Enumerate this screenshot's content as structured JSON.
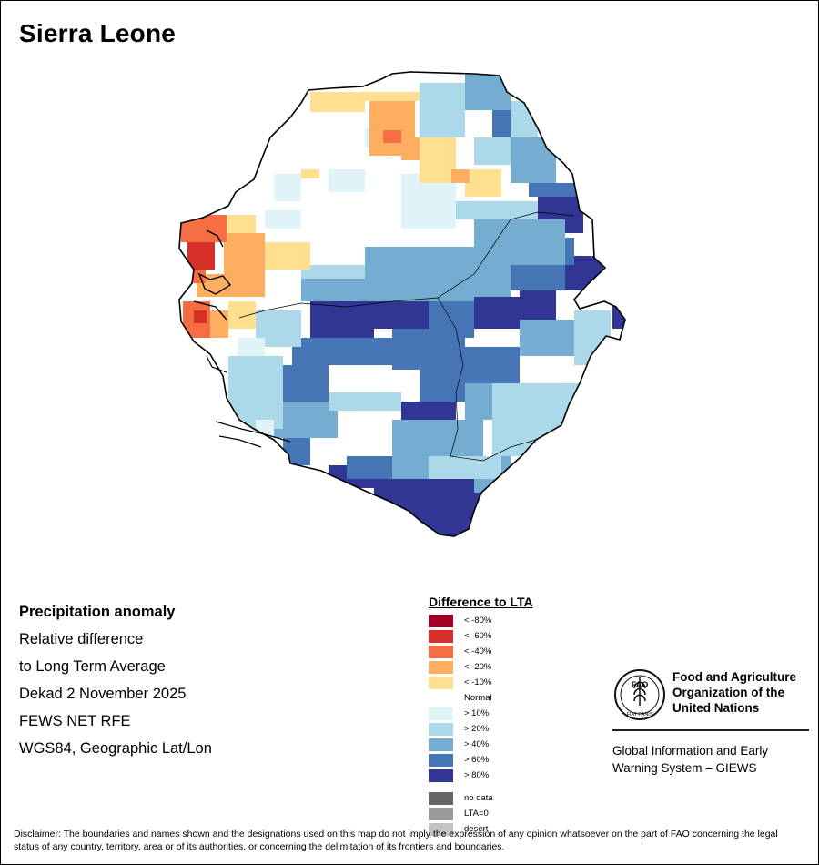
{
  "map": {
    "title": "Sierra Leone"
  },
  "info": {
    "heading": "Precipitation anomaly",
    "lines": [
      "Relative difference",
      "to Long Term Average",
      "Dekad 2 November 2025",
      "FEWS NET RFE",
      "WGS84, Geographic Lat/Lon"
    ]
  },
  "legend": {
    "title": "Difference to LTA",
    "classes": [
      {
        "label": "< -80%",
        "color": "#a50026"
      },
      {
        "label": "< -60%",
        "color": "#d73027"
      },
      {
        "label": "< -40%",
        "color": "#f46d43"
      },
      {
        "label": "< -20%",
        "color": "#fdae61"
      },
      {
        "label": "< -10%",
        "color": "#fee090"
      },
      {
        "label": "Normal",
        "color": "#ffffff"
      },
      {
        "label": "> 10%",
        "color": "#e0f3f8"
      },
      {
        "label": "> 20%",
        "color": "#abd9e9"
      },
      {
        "label": "> 40%",
        "color": "#74add1"
      },
      {
        "label": "> 60%",
        "color": "#4575b4"
      },
      {
        "label": "> 80%",
        "color": "#313695"
      }
    ],
    "extra": [
      {
        "label": "no data",
        "color": "#676767"
      },
      {
        "label": "LTA=0",
        "color": "#9a9a9a"
      },
      {
        "label": "desert",
        "color": "#c4c4c4"
      }
    ]
  },
  "branding": {
    "org_line1": "Food and Agriculture",
    "org_line2": "Organization of the",
    "org_line3": "United Nations",
    "emblem_text": "FAO",
    "emblem_motto": "FIAT PANIS",
    "system_line1": "Global Information and Early",
    "system_line2": "Warning System – GIEWS"
  },
  "disclaimer": "Disclaimer: The boundaries and names shown and the designations used on this map do not imply the expression of any opinion whatsoever on the part of FAO concerning the legal status of any country, territory, area or of its authorities, or concerning the delimitation of its frontiers and boundaries."
}
